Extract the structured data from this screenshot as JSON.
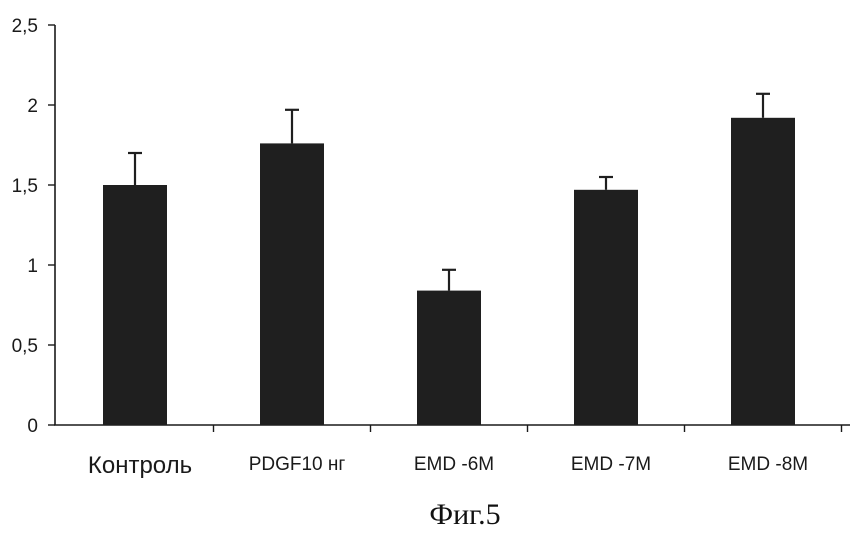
{
  "chart_data": {
    "type": "bar",
    "categories": [
      "Контроль",
      "PDGF10 нг",
      "EMD -6M",
      "EMD -7M",
      "EMD -8M"
    ],
    "values": [
      1.5,
      1.76,
      0.84,
      1.47,
      1.92
    ],
    "errors": [
      0.2,
      0.21,
      0.13,
      0.08,
      0.15
    ],
    "yticks": [
      "0",
      "0,5",
      "1",
      "1,5",
      "2",
      "2,5"
    ],
    "ylim": [
      0,
      2.5
    ],
    "grid": false,
    "bar_color": "#1f1f1f"
  },
  "caption": "Фиг.5"
}
